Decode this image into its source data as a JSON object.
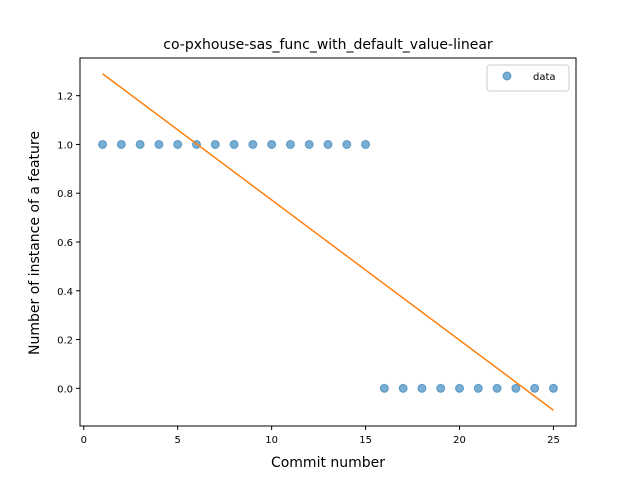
{
  "chart_data": {
    "type": "scatter",
    "title": "co-pxhouse-sas_func_with_default_value-linear",
    "xlabel": "Commit number",
    "ylabel": "Number of instance of a feature",
    "xlim": [
      -0.2,
      26.2
    ],
    "ylim": [
      -0.1545,
      1.3545
    ],
    "xticks": [
      0,
      5,
      10,
      15,
      20,
      25
    ],
    "xtick_labels": [
      "0",
      "5",
      "10",
      "15",
      "20",
      "25"
    ],
    "yticks": [
      0.0,
      0.2,
      0.4,
      0.6,
      0.8,
      1.0,
      1.2
    ],
    "ytick_labels": [
      "0.0",
      "0.2",
      "0.4",
      "0.6",
      "0.8",
      "1.0",
      "1.2"
    ],
    "grid": false,
    "legend": {
      "position": "top-right",
      "entries": [
        "data"
      ]
    },
    "series": [
      {
        "name": "data",
        "kind": "scatter",
        "color": "#1f77b4",
        "x": [
          1,
          2,
          3,
          4,
          5,
          6,
          7,
          8,
          9,
          10,
          11,
          12,
          13,
          14,
          15,
          16,
          17,
          18,
          19,
          20,
          21,
          22,
          23,
          24,
          25
        ],
        "y": [
          1,
          1,
          1,
          1,
          1,
          1,
          1,
          1,
          1,
          1,
          1,
          1,
          1,
          1,
          1,
          0,
          0,
          0,
          0,
          0,
          0,
          0,
          0,
          0,
          0
        ]
      },
      {
        "kind": "line",
        "color": "#ff7f0e",
        "x": [
          1,
          25
        ],
        "y": [
          1.29,
          -0.09
        ]
      }
    ]
  }
}
